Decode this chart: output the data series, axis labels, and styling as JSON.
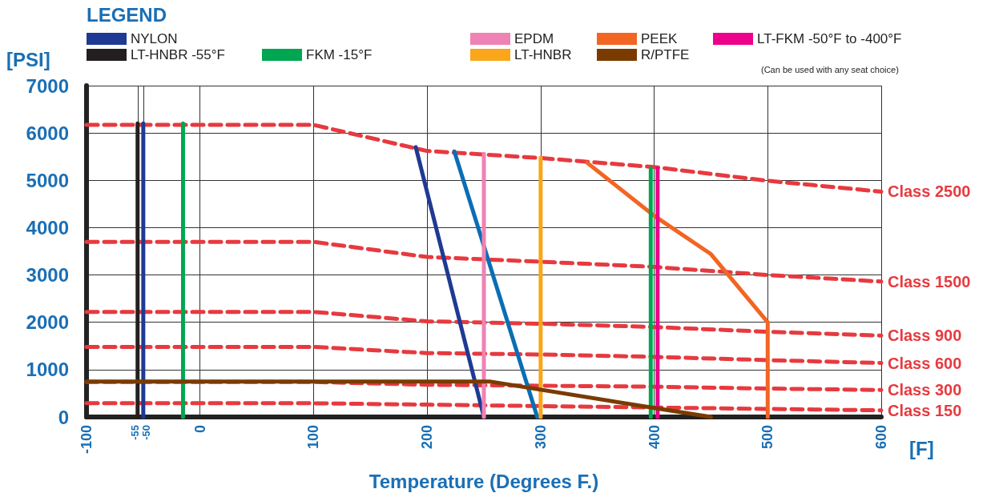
{
  "chart_data": {
    "type": "line",
    "legend_title": "LEGEND",
    "ylabel": "[PSI]",
    "xlabel": "Temperature (Degrees F.)",
    "x2label": "[F]",
    "annotations": [
      "(Can be used with any seat choice)"
    ],
    "xlim": [
      -100,
      600
    ],
    "xticks": [
      -100,
      -55,
      -50,
      0,
      100,
      200,
      300,
      400,
      500,
      600
    ],
    "ylim": [
      0,
      7000
    ],
    "yticks": [
      0,
      1000,
      2000,
      3000,
      4000,
      5000,
      6000,
      7000
    ],
    "grid": true,
    "legend": "top",
    "marker": "none",
    "line_style": "solid",
    "series": [
      {
        "name": "NYLON",
        "color": "#1f3a93",
        "x": [
          -50,
          -50,
          100,
          190,
          250
        ],
        "values": [
          0,
          6200,
          null,
          5700,
          0
        ]
      },
      {
        "color": "#0a6eb4",
        "x": [
          224,
          297
        ],
        "values": [
          5610,
          0
        ]
      },
      {
        "name": "EPDM",
        "color": "#ee82b4",
        "x": [
          250,
          250
        ],
        "values": [
          0,
          5560
        ]
      },
      {
        "name": "PEEK",
        "color": "#f26522",
        "x": [
          341,
          400,
          450,
          500,
          500
        ],
        "values": [
          5370,
          4250,
          3440,
          2000,
          0
        ]
      },
      {
        "name": "LT-FKM -50°F to -400°F",
        "color": "#ec008c",
        "x": [
          403,
          403
        ],
        "values": [
          0,
          5250
        ]
      },
      {
        "name": "LT-HNBR -55°F",
        "color": "#231f20",
        "x": [
          -55,
          -55
        ],
        "values": [
          0,
          6200
        ]
      },
      {
        "name": "FKM -15°F",
        "color": "#00a651",
        "x": [
          -15,
          -15,
          100,
          397,
          397
        ],
        "values": [
          0,
          6200,
          null,
          0,
          5250
        ]
      },
      {
        "name": "LT-HNBR",
        "color": "#f9a61a",
        "x": [
          300,
          300
        ],
        "values": [
          0,
          5480
        ]
      },
      {
        "name": "R/PTFE",
        "color": "#7a3b00",
        "x": [
          -100,
          255,
          400,
          450
        ],
        "values": [
          750,
          750,
          190,
          0
        ]
      },
      {
        "name": "Class 2500",
        "color": "#e63a3f",
        "line_style": "dashed",
        "x": [
          -100,
          100,
          200,
          300,
          400,
          500,
          600
        ],
        "values": [
          6170,
          6170,
          5620,
          5470,
          5280,
          4990,
          4760
        ]
      },
      {
        "name": "Class 1500",
        "color": "#e63a3f",
        "line_style": "dashed",
        "x": [
          -100,
          100,
          200,
          300,
          400,
          500,
          600
        ],
        "values": [
          3700,
          3700,
          3380,
          3280,
          3170,
          3000,
          2860
        ]
      },
      {
        "name": "Class 900",
        "color": "#e63a3f",
        "line_style": "dashed",
        "x": [
          -100,
          100,
          200,
          300,
          400,
          500,
          600
        ],
        "values": [
          2220,
          2220,
          2020,
          1970,
          1900,
          1800,
          1720
        ]
      },
      {
        "name": "Class 600",
        "color": "#e63a3f",
        "line_style": "dashed",
        "x": [
          -100,
          100,
          200,
          300,
          400,
          500,
          600
        ],
        "values": [
          1480,
          1480,
          1350,
          1320,
          1270,
          1200,
          1140
        ]
      },
      {
        "name": "Class 300",
        "color": "#e63a3f",
        "line_style": "dashed",
        "x": [
          -100,
          100,
          200,
          300,
          400,
          500,
          600
        ],
        "values": [
          740,
          740,
          680,
          660,
          640,
          600,
          570
        ]
      },
      {
        "name": "Class 150",
        "color": "#e63a3f",
        "line_style": "dashed",
        "x": [
          -100,
          100,
          200,
          300,
          400,
          500,
          600
        ],
        "values": [
          290,
          290,
          260,
          230,
          200,
          170,
          140
        ]
      }
    ]
  }
}
